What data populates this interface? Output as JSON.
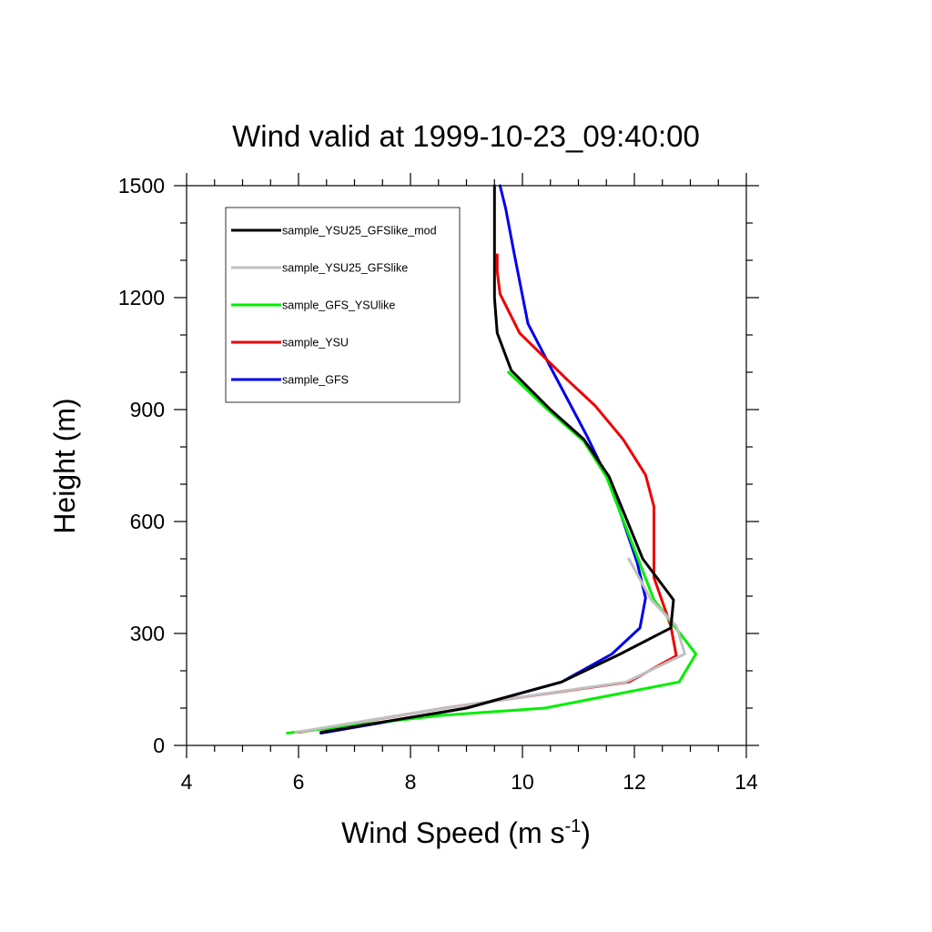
{
  "chart_data": {
    "type": "line",
    "title": "Wind valid at 1999-10-23_09:40:00",
    "xlabel": "Wind Speed (m s",
    "xlabel_sup": "-1",
    "xlabel_tail": ")",
    "ylabel": "Height (m)",
    "xlim": [
      4,
      14
    ],
    "ylim": [
      0,
      1500
    ],
    "xticks": [
      4,
      6,
      8,
      10,
      12,
      14
    ],
    "yticks": [
      0,
      300,
      600,
      900,
      1200,
      1500
    ],
    "grid": false,
    "legend_position": "top-left",
    "series": [
      {
        "name": "sample_YSU25_GFSlike_mod",
        "color": "#000000",
        "x": [
          6.4,
          9.0,
          10.7,
          11.75,
          12.65,
          12.7,
          12.15,
          11.55,
          11.1,
          10.5,
          9.8,
          9.55,
          9.5,
          9.5,
          9.5
        ],
        "y": [
          35,
          100,
          170,
          245,
          315,
          390,
          500,
          720,
          820,
          900,
          1005,
          1105,
          1200,
          1300,
          1500
        ]
      },
      {
        "name": "sample_YSU25_GFSlike",
        "color": "#c0c0c0",
        "x": [
          5.95,
          8.6,
          11.85,
          12.9,
          12.75,
          12.3,
          11.9
        ],
        "y": [
          35,
          100,
          170,
          245,
          320,
          390,
          500
        ]
      },
      {
        "name": "sample_GFS_YSUlike",
        "color": "#00ee00",
        "x": [
          5.8,
          8.5,
          10.4,
          12.8,
          13.1,
          12.35,
          11.5,
          11.1,
          10.45,
          9.75
        ],
        "y": [
          33,
          80,
          100,
          170,
          245,
          390,
          720,
          815,
          900,
          1000
        ]
      },
      {
        "name": "sample_YSU",
        "color": "#ee0000",
        "x": [
          6.0,
          8.6,
          11.9,
          12.75,
          12.65,
          12.35,
          12.35,
          12.2,
          11.8,
          11.3,
          10.8,
          9.95,
          9.6,
          9.55,
          9.55
        ],
        "y": [
          35,
          100,
          170,
          240,
          320,
          450,
          640,
          725,
          820,
          910,
          980,
          1105,
          1210,
          1270,
          1315
        ]
      },
      {
        "name": "sample_GFS",
        "color": "#0000ee",
        "x": [
          6.4,
          9.0,
          10.7,
          11.6,
          12.1,
          12.2,
          12.05,
          11.6,
          11.15,
          10.55,
          10.1,
          9.85,
          9.7,
          9.6
        ],
        "y": [
          33,
          100,
          170,
          245,
          315,
          395,
          490,
          690,
          830,
          1000,
          1130,
          1320,
          1440,
          1500
        ]
      }
    ]
  }
}
